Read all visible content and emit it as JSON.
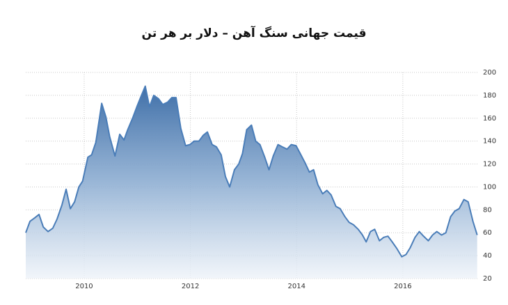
{
  "chart_data": {
    "type": "area",
    "title": "قیمت جهانی سنگ آهن – دلار بر هر تن",
    "x": [
      2008.9,
      2008.98,
      2009.07,
      2009.15,
      2009.23,
      2009.32,
      2009.41,
      2009.49,
      2009.58,
      2009.66,
      2009.74,
      2009.82,
      2009.9,
      2009.97,
      2010.07,
      2010.14,
      2010.22,
      2010.33,
      2010.41,
      2010.48,
      2010.58,
      2010.67,
      2010.75,
      2010.82,
      2010.92,
      2011.0,
      2011.07,
      2011.15,
      2011.23,
      2011.31,
      2011.4,
      2011.48,
      2011.57,
      2011.65,
      2011.73,
      2011.82,
      2011.91,
      2011.99,
      2012.07,
      2012.16,
      2012.24,
      2012.32,
      2012.41,
      2012.49,
      2012.58,
      2012.66,
      2012.74,
      2012.83,
      2012.91,
      2012.98,
      2013.06,
      2013.15,
      2013.23,
      2013.31,
      2013.4,
      2013.48,
      2013.56,
      2013.65,
      2013.73,
      2013.82,
      2013.9,
      2013.99,
      2014.07,
      2014.16,
      2014.24,
      2014.32,
      2014.4,
      2014.49,
      2014.57,
      2014.65,
      2014.74,
      2014.82,
      2014.91,
      2014.99,
      2015.07,
      2015.16,
      2015.24,
      2015.31,
      2015.39,
      2015.47,
      2015.56,
      2015.64,
      2015.72,
      2015.8,
      2015.89,
      2015.98,
      2016.06,
      2016.14,
      2016.23,
      2016.31,
      2016.39,
      2016.48,
      2016.56,
      2016.64,
      2016.73,
      2016.81,
      2016.9,
      2016.98,
      2017.06,
      2017.15,
      2017.23,
      2017.32,
      2017.4
    ],
    "values": [
      60,
      70,
      73,
      76,
      65,
      61,
      64,
      72,
      84,
      98,
      81,
      87,
      100,
      105,
      126,
      128,
      139,
      173,
      161,
      144,
      127,
      146,
      141,
      150,
      161,
      171,
      179,
      188,
      170,
      180,
      177,
      172,
      174,
      178,
      178,
      151,
      136,
      137,
      140,
      140,
      145,
      148,
      137,
      135,
      128,
      109,
      100,
      115,
      120,
      129,
      150,
      154,
      140,
      137,
      126,
      115,
      127,
      137,
      135,
      133,
      137,
      136,
      129,
      121,
      113,
      115,
      102,
      94,
      97,
      93,
      83,
      81,
      74,
      69,
      67,
      63,
      58,
      52,
      61,
      63,
      53,
      56,
      57,
      52,
      46,
      39,
      41,
      47,
      56,
      61,
      57,
      53,
      58,
      61,
      58,
      60,
      74,
      79,
      81,
      89,
      87,
      70,
      58
    ],
    "color": "#4a7db8",
    "xlim": [
      2008.9,
      2017.43
    ],
    "xticks": [
      2010,
      2012,
      2014,
      2016
    ],
    "ylim": [
      20,
      200
    ],
    "yticks": [
      20,
      40,
      60,
      80,
      100,
      120,
      140,
      160,
      180,
      200
    ],
    "grid": true
  }
}
